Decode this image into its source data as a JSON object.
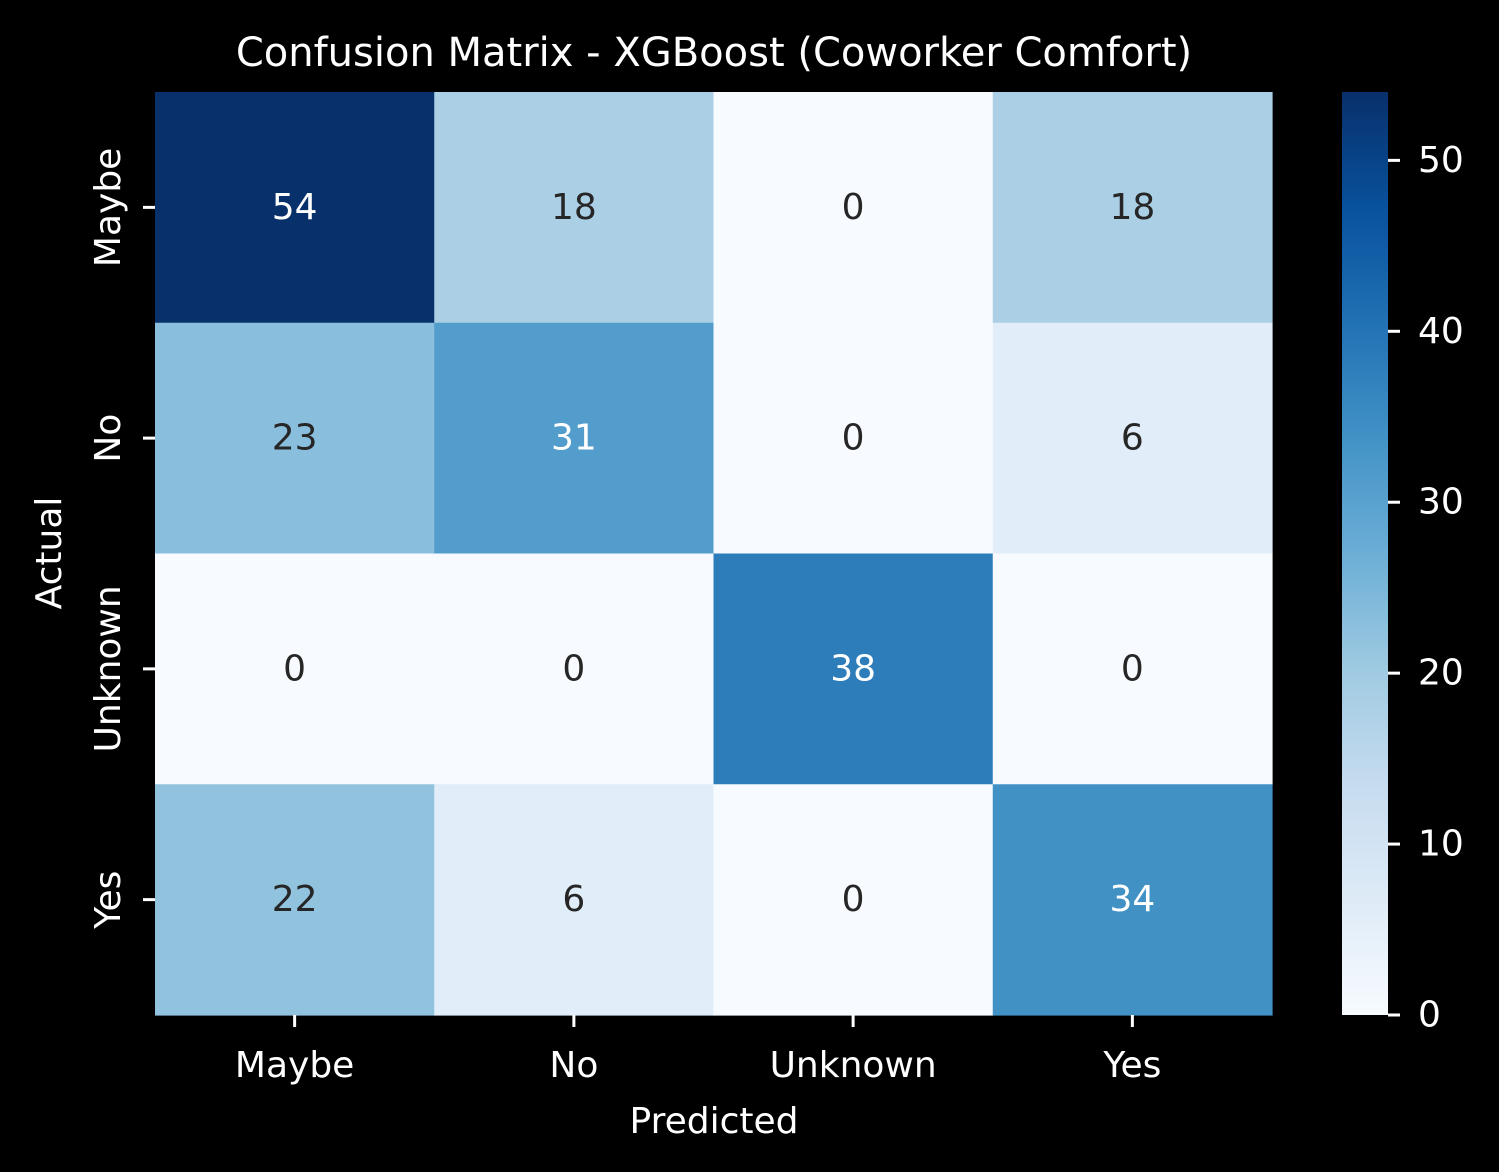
{
  "chart_data": {
    "type": "heatmap",
    "title": "Confusion Matrix - XGBoost (Coworker Comfort)",
    "xlabel": "Predicted",
    "ylabel": "Actual",
    "x_categories": [
      "Maybe",
      "No",
      "Unknown",
      "Yes"
    ],
    "y_categories": [
      "Maybe",
      "No",
      "Unknown",
      "Yes"
    ],
    "values": [
      [
        54,
        18,
        0,
        18
      ],
      [
        23,
        31,
        0,
        6
      ],
      [
        0,
        0,
        38,
        0
      ],
      [
        22,
        6,
        0,
        34
      ]
    ],
    "colorbar": {
      "colormap": "Blues",
      "range": [
        0,
        54
      ],
      "ticks": [
        "0",
        "10",
        "20",
        "30",
        "40",
        "50"
      ]
    },
    "colors": {
      "background": "#000000",
      "foreground": "#ffffff",
      "dark_annotation": "#262626",
      "light_annotation": "#ffffff"
    }
  }
}
